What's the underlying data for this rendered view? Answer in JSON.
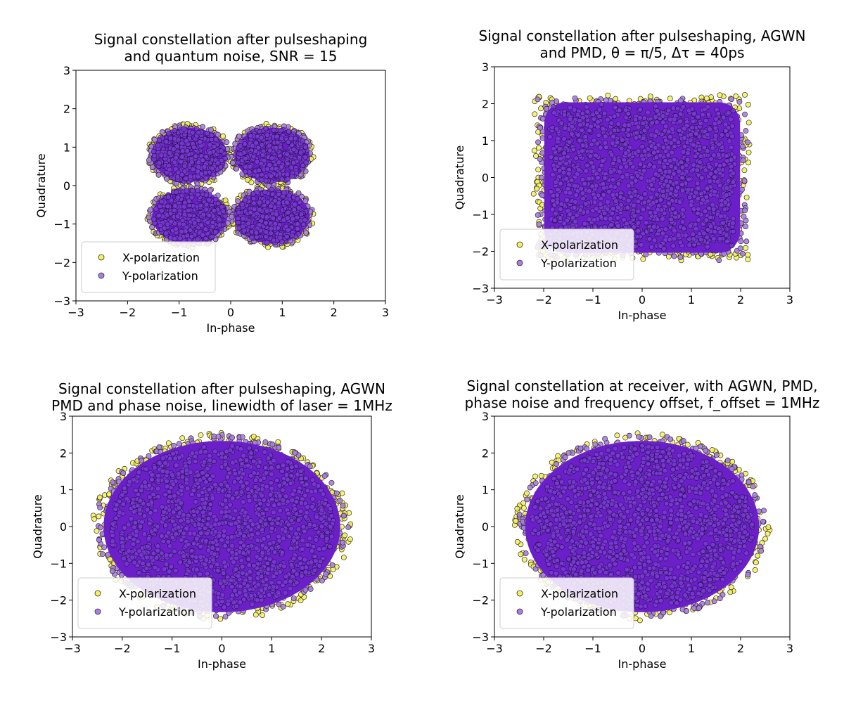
{
  "figure": {
    "colors": {
      "x_polarization": "#f2f25a",
      "y_polarization": "#a67fe0",
      "dense_fill": "#6a1fc9",
      "marker_edge": "#3a2a2a"
    }
  },
  "chart_data": [
    {
      "type": "scatter",
      "title_lines": [
        "Signal constellation after pulseshaping",
        "and quantum noise, SNR = 15"
      ],
      "xlabel": "In-phase",
      "ylabel": "Quadrature",
      "xlim": [
        -3,
        3
      ],
      "ylim": [
        -3,
        3
      ],
      "xticks": [
        "−3",
        "−2",
        "−1",
        "0",
        "1",
        "2",
        "3"
      ],
      "yticks": [
        "−3",
        "−2",
        "−1",
        "0",
        "1",
        "2",
        "3"
      ],
      "grid": false,
      "legend_position": "lower-left",
      "series": [
        {
          "name": "X-polarization",
          "color": "#f2f25a",
          "shape": "four-clusters",
          "centers": [
            [
              -0.8,
              0.8
            ],
            [
              0.8,
              0.8
            ],
            [
              -0.8,
              -0.8
            ],
            [
              0.8,
              -0.8
            ]
          ],
          "radius": 0.82
        },
        {
          "name": "Y-polarization",
          "color": "#a67fe0",
          "shape": "four-clusters",
          "centers": [
            [
              -0.8,
              0.8
            ],
            [
              0.8,
              0.8
            ],
            [
              -0.8,
              -0.8
            ],
            [
              0.8,
              -0.8
            ]
          ],
          "radius": 0.78
        }
      ]
    },
    {
      "type": "scatter",
      "title_lines": [
        "Signal constellation after pulseshaping, AGWN",
        "and PMD, θ = π/5, Δτ = 40ps"
      ],
      "xlabel": "In-phase",
      "ylabel": "Quadrature",
      "xlim": [
        -3,
        3
      ],
      "ylim": [
        -3,
        3
      ],
      "xticks": [
        "−3",
        "−2",
        "−1",
        "0",
        "1",
        "2",
        "3"
      ],
      "yticks": [
        "−3",
        "−2",
        "−1",
        "0",
        "1",
        "2",
        "3"
      ],
      "grid": false,
      "legend_position": "lower-left",
      "series": [
        {
          "name": "X-polarization",
          "color": "#f2f25a",
          "shape": "rounded-square",
          "half_width": 2.15,
          "half_height": 2.2
        },
        {
          "name": "Y-polarization",
          "color": "#a67fe0",
          "shape": "rounded-square",
          "half_width": 2.05,
          "half_height": 2.1
        }
      ]
    },
    {
      "type": "scatter",
      "title_lines": [
        "Signal constellation after pulseshaping, AGWN",
        "PMD and phase noise, linewidth of laser = 1MHz"
      ],
      "xlabel": "In-phase",
      "ylabel": "Quadrature",
      "xlim": [
        -3,
        3
      ],
      "ylim": [
        -3,
        3
      ],
      "xticks": [
        "−3",
        "−2",
        "−1",
        "0",
        "1",
        "2",
        "3"
      ],
      "yticks": [
        "−3",
        "−2",
        "−1",
        "0",
        "1",
        "2",
        "3"
      ],
      "grid": false,
      "legend_position": "lower-left",
      "series": [
        {
          "name": "X-polarization",
          "color": "#f2f25a",
          "shape": "disk",
          "center": [
            0,
            0
          ],
          "radius_x": 2.6,
          "radius_y": 2.55
        },
        {
          "name": "Y-polarization",
          "color": "#a67fe0",
          "shape": "disk",
          "center": [
            0,
            0
          ],
          "radius_x": 2.5,
          "radius_y": 2.45
        }
      ]
    },
    {
      "type": "scatter",
      "title_lines": [
        "Signal constellation at receiver, with AGWN, PMD,",
        "phase noise and frequency offset, f_offset = 1MHz"
      ],
      "xlabel": "In-phase",
      "ylabel": "Quadrature",
      "xlim": [
        -3,
        3
      ],
      "ylim": [
        -3,
        3
      ],
      "xticks": [
        "−3",
        "−2",
        "−1",
        "0",
        "1",
        "2",
        "3"
      ],
      "yticks": [
        "−3",
        "−2",
        "−1",
        "0",
        "1",
        "2",
        "3"
      ],
      "grid": false,
      "legend_position": "lower-left",
      "series": [
        {
          "name": "X-polarization",
          "color": "#f2f25a",
          "shape": "disk",
          "center": [
            0,
            0
          ],
          "radius_x": 2.6,
          "radius_y": 2.55
        },
        {
          "name": "Y-polarization",
          "color": "#a67fe0",
          "shape": "disk",
          "center": [
            0,
            0
          ],
          "radius_x": 2.5,
          "radius_y": 2.45
        }
      ]
    }
  ]
}
